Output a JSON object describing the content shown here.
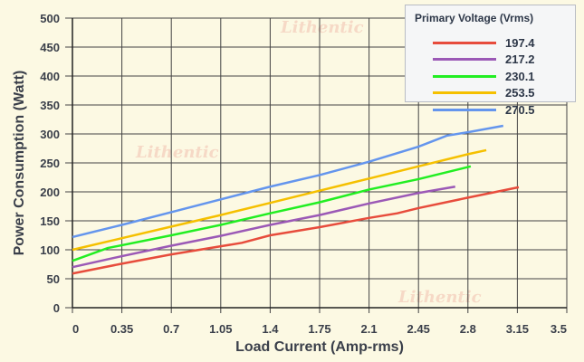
{
  "chart_data": {
    "type": "line",
    "title": "",
    "xlabel": "Load Current (Amp-rms)",
    "ylabel": "Power Consumption (Watt)",
    "xlim": [
      0,
      3.5
    ],
    "ylim": [
      0,
      500
    ],
    "x_ticks": [
      "0",
      "0.35",
      "0.7",
      "1.05",
      "1.4",
      "1.75",
      "2.1",
      "2.45",
      "2.8",
      "3.15",
      "3.5"
    ],
    "y_ticks": [
      "0",
      "50",
      "100",
      "150",
      "200",
      "250",
      "300",
      "350",
      "400",
      "450",
      "500"
    ],
    "grid": true,
    "legend": {
      "title": "Primary Voltage (Vrms)",
      "placement": "top-right"
    },
    "series": [
      {
        "name": "197.4",
        "color": "#e74c3c",
        "points": [
          [
            0,
            59
          ],
          [
            0.35,
            76
          ],
          [
            0.7,
            92
          ],
          [
            1.05,
            106
          ],
          [
            1.2,
            112
          ],
          [
            1.4,
            125
          ],
          [
            1.75,
            139
          ],
          [
            2.1,
            155
          ],
          [
            2.3,
            163
          ],
          [
            2.45,
            172
          ],
          [
            2.8,
            190
          ],
          [
            3.16,
            208
          ]
        ]
      },
      {
        "name": "217.2",
        "color": "#9b59b6",
        "points": [
          [
            0,
            70
          ],
          [
            0.35,
            89
          ],
          [
            0.7,
            107
          ],
          [
            1.05,
            124
          ],
          [
            1.4,
            143
          ],
          [
            1.75,
            160
          ],
          [
            2.1,
            180
          ],
          [
            2.45,
            198
          ],
          [
            2.71,
            209
          ]
        ]
      },
      {
        "name": "230.1",
        "color": "#22ee22",
        "points": [
          [
            0,
            81
          ],
          [
            0.25,
            103
          ],
          [
            0.7,
            125
          ],
          [
            1.05,
            143
          ],
          [
            1.4,
            163
          ],
          [
            1.75,
            182
          ],
          [
            2.1,
            204
          ],
          [
            2.45,
            222
          ],
          [
            2.82,
            244
          ]
        ]
      },
      {
        "name": "253.5",
        "color": "#f5c000",
        "points": [
          [
            0,
            100
          ],
          [
            0.35,
            120
          ],
          [
            0.7,
            140
          ],
          [
            1.05,
            160
          ],
          [
            1.4,
            181
          ],
          [
            1.75,
            202
          ],
          [
            2.1,
            223
          ],
          [
            2.45,
            244
          ],
          [
            2.8,
            265
          ],
          [
            2.93,
            272
          ]
        ]
      },
      {
        "name": "270.5",
        "color": "#6495ed",
        "points": [
          [
            0,
            122
          ],
          [
            0.35,
            143
          ],
          [
            0.7,
            165
          ],
          [
            1.05,
            187
          ],
          [
            1.4,
            209
          ],
          [
            1.75,
            229
          ],
          [
            2.1,
            252
          ],
          [
            2.45,
            278
          ],
          [
            2.65,
            297
          ],
          [
            2.8,
            303
          ],
          [
            3.05,
            314
          ]
        ]
      }
    ]
  },
  "watermark": "Lithentic"
}
